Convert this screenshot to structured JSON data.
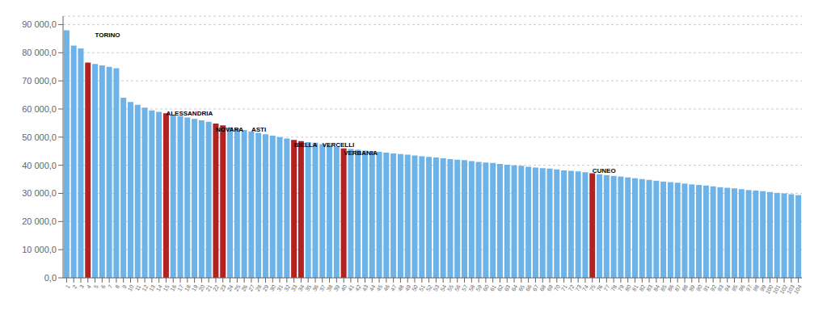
{
  "chart_data": {
    "type": "bar",
    "categories": [
      "1",
      "2",
      "3",
      "4",
      "5",
      "6",
      "7",
      "8",
      "9",
      "10",
      "11",
      "12",
      "13",
      "14",
      "15",
      "16",
      "17",
      "18",
      "19",
      "20",
      "21",
      "22",
      "23",
      "24",
      "25",
      "26",
      "27",
      "28",
      "29",
      "30",
      "31",
      "32",
      "33",
      "34",
      "35",
      "36",
      "37",
      "38",
      "39",
      "40",
      "41",
      "42",
      "43",
      "44",
      "45",
      "46",
      "47",
      "48",
      "49",
      "50",
      "51",
      "52",
      "53",
      "54",
      "55",
      "56",
      "57",
      "58",
      "59",
      "60",
      "61",
      "62",
      "63",
      "64",
      "65",
      "66",
      "67",
      "68",
      "69",
      "70",
      "71",
      "72",
      "73",
      "74",
      "75",
      "76",
      "77",
      "78",
      "79",
      "80",
      "81",
      "82",
      "83",
      "84",
      "85",
      "86",
      "87",
      "88",
      "89",
      "90",
      "91",
      "92",
      "93",
      "94",
      "95",
      "96",
      "97",
      "98",
      "99",
      "100",
      "101",
      "102",
      "103",
      "104"
    ],
    "values": [
      88000,
      82500,
      81500,
      76500,
      76000,
      75500,
      75000,
      74500,
      64000,
      62500,
      61500,
      60500,
      59500,
      59000,
      58500,
      58000,
      57500,
      57000,
      56500,
      56000,
      55500,
      54800,
      54200,
      53500,
      53000,
      52500,
      52000,
      51500,
      51000,
      50500,
      50000,
      49500,
      49000,
      48600,
      48200,
      48000,
      47500,
      47000,
      46500,
      46000,
      45800,
      45500,
      45200,
      45000,
      44800,
      44500,
      44200,
      44000,
      43800,
      43500,
      43200,
      43000,
      42800,
      42500,
      42200,
      42000,
      41800,
      41500,
      41200,
      41000,
      40800,
      40500,
      40200,
      40000,
      39800,
      39500,
      39200,
      39000,
      38800,
      38500,
      38200,
      38000,
      37800,
      37500,
      37200,
      36800,
      36500,
      36200,
      36000,
      35700,
      35400,
      35100,
      34800,
      34500,
      34200,
      34000,
      33800,
      33500,
      33200,
      33000,
      32800,
      32500,
      32200,
      32000,
      31800,
      31500,
      31200,
      31000,
      30800,
      30500,
      30200,
      30000,
      29700,
      29400
    ],
    "colors": [
      "#6DB3E8",
      "#6DB3E8",
      "#6DB3E8",
      "#B22222",
      "#6DB3E8",
      "#6DB3E8",
      "#6DB3E8",
      "#6DB3E8",
      "#6DB3E8",
      "#6DB3E8",
      "#6DB3E8",
      "#6DB3E8",
      "#6DB3E8",
      "#6DB3E8",
      "#B22222",
      "#6DB3E8",
      "#6DB3E8",
      "#6DB3E8",
      "#6DB3E8",
      "#6DB3E8",
      "#6DB3E8",
      "#B22222",
      "#B22222",
      "#6DB3E8",
      "#6DB3E8",
      "#6DB3E8",
      "#6DB3E8",
      "#6DB3E8",
      "#6DB3E8",
      "#6DB3E8",
      "#6DB3E8",
      "#6DB3E8",
      "#B22222",
      "#B22222",
      "#6DB3E8",
      "#6DB3E8",
      "#6DB3E8",
      "#6DB3E8",
      "#6DB3E8",
      "#B22222",
      "#6DB3E8",
      "#6DB3E8",
      "#6DB3E8",
      "#6DB3E8",
      "#6DB3E8",
      "#6DB3E8",
      "#6DB3E8",
      "#6DB3E8",
      "#6DB3E8",
      "#6DB3E8",
      "#6DB3E8",
      "#6DB3E8",
      "#6DB3E8",
      "#6DB3E8",
      "#6DB3E8",
      "#6DB3E8",
      "#6DB3E8",
      "#6DB3E8",
      "#6DB3E8",
      "#6DB3E8",
      "#6DB3E8",
      "#6DB3E8",
      "#6DB3E8",
      "#6DB3E8",
      "#6DB3E8",
      "#6DB3E8",
      "#6DB3E8",
      "#6DB3E8",
      "#6DB3E8",
      "#6DB3E8",
      "#6DB3E8",
      "#6DB3E8",
      "#6DB3E8",
      "#6DB3E8",
      "#B22222",
      "#6DB3E8",
      "#6DB3E8",
      "#6DB3E8",
      "#6DB3E8",
      "#6DB3E8",
      "#6DB3E8",
      "#6DB3E8",
      "#6DB3E8",
      "#6DB3E8",
      "#6DB3E8",
      "#6DB3E8",
      "#6DB3E8",
      "#6DB3E8",
      "#6DB3E8",
      "#6DB3E8",
      "#6DB3E8",
      "#6DB3E8",
      "#6DB3E8",
      "#6DB3E8",
      "#6DB3E8",
      "#6DB3E8",
      "#6DB3E8",
      "#6DB3E8",
      "#6DB3E8",
      "#6DB3E8",
      "#6DB3E8",
      "#6DB3E8",
      "#6DB3E8",
      "#6DB3E8"
    ],
    "ylim": [
      0,
      93000
    ],
    "yticks": [
      {
        "value": 0,
        "label": "0,0"
      },
      {
        "value": 10000,
        "label": "10 000,0"
      },
      {
        "value": 20000,
        "label": "20 000,0"
      },
      {
        "value": 30000,
        "label": "30 000,0"
      },
      {
        "value": 40000,
        "label": "40 000,0"
      },
      {
        "value": 50000,
        "label": "50 000,0"
      },
      {
        "value": 60000,
        "label": "60 000,0"
      },
      {
        "value": 70000,
        "label": "70 000,0"
      },
      {
        "value": 80000,
        "label": "80 000,0"
      },
      {
        "value": 90000,
        "label": "90 000,0"
      }
    ],
    "grid": true,
    "annotations": [
      {
        "text": "TORINO",
        "x": "5",
        "y": 85560
      },
      {
        "text": "ALESSANDRIA",
        "x": "15",
        "y": 57660
      },
      {
        "text": "NOVARA",
        "x": "22",
        "y": 52080
      },
      {
        "text": "ASTI",
        "x": "27",
        "y": 52080
      },
      {
        "text": "BIELLA",
        "x": "33",
        "y": 46500
      },
      {
        "text": "VERCELLI",
        "x": "37",
        "y": 46500
      },
      {
        "text": "VERBANIA",
        "x": "40",
        "y": 43710
      },
      {
        "text": "CUNEO",
        "x": "75",
        "y": 37200
      }
    ]
  }
}
